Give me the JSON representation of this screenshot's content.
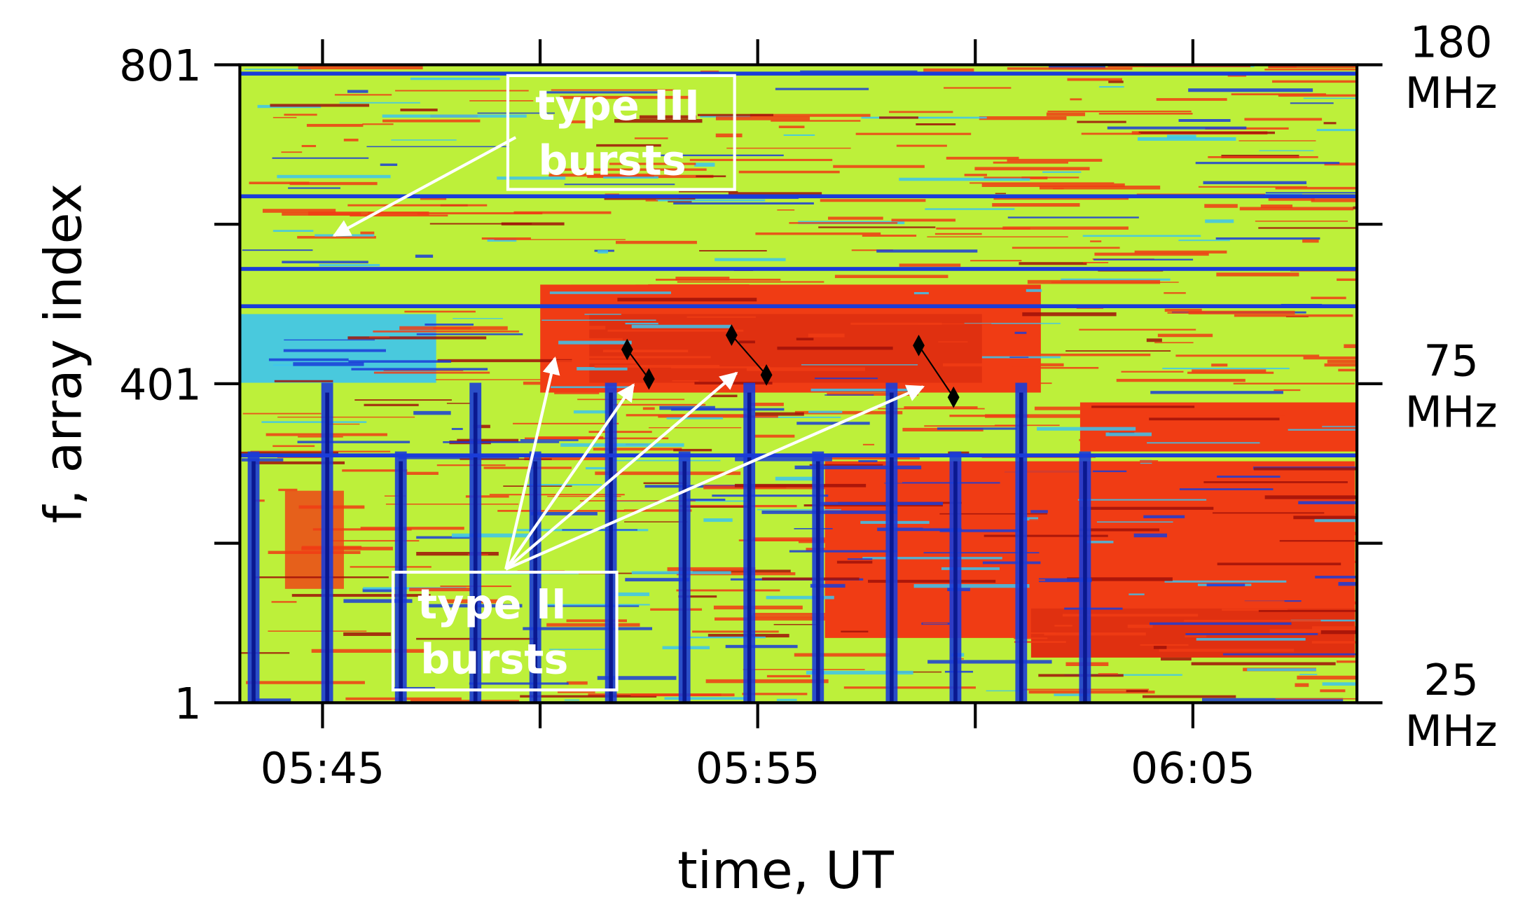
{
  "chart_data": {
    "type": "spectrogram",
    "xlabel": "time, UT",
    "ylabel": "f, array index",
    "xlim": [
      343.1,
      368.77
    ],
    "xticks": [
      {
        "value": 345,
        "label": "05:45"
      },
      {
        "value": 350,
        "label": null
      },
      {
        "value": 355,
        "label": "05:55"
      },
      {
        "value": 360,
        "label": null
      },
      {
        "value": 365,
        "label": "06:05"
      }
    ],
    "ylim": [
      1,
      801
    ],
    "yticks": [
      1,
      {
        "value": 201,
        "label": null
      },
      401,
      {
        "value": 601,
        "label": null
      },
      801
    ],
    "y2_labels": [
      {
        "index": 801,
        "lines": [
          "180",
          "MHz"
        ]
      },
      {
        "index": 401,
        "lines": [
          "75",
          "MHz"
        ]
      },
      {
        "index": 1,
        "lines": [
          "25",
          "MHz"
        ]
      }
    ],
    "annotations": [
      {
        "lines": [
          "type III",
          "bursts"
        ]
      },
      {
        "lines": [
          "type II",
          "bursts"
        ]
      }
    ],
    "tracks": {
      "color": "#000000",
      "series": [
        {
          "x": [
            352.0,
            352.5
          ],
          "values": [
            444,
            407
          ]
        },
        {
          "x": [
            354.4,
            355.2
          ],
          "values": [
            462,
            412
          ]
        },
        {
          "x": [
            358.7,
            359.5
          ],
          "values": [
            449,
            384
          ]
        }
      ]
    }
  }
}
